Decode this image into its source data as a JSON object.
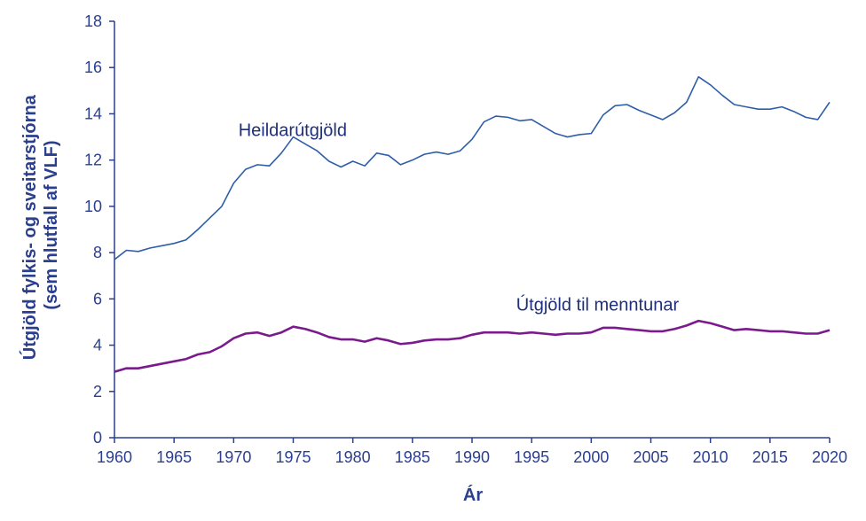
{
  "chart_data": {
    "type": "line",
    "title": "",
    "xlabel": "Ár",
    "ylabel_line1": "Útgjöld fylkis- og sveitarstjórna",
    "ylabel_line2": "(sem hlutfall af VLF)",
    "xlim": [
      1960,
      2020
    ],
    "ylim": [
      0,
      18
    ],
    "x_ticks": [
      1960,
      1965,
      1970,
      1975,
      1980,
      1985,
      1990,
      1995,
      2000,
      2005,
      2010,
      2015,
      2020
    ],
    "y_ticks": [
      0,
      2,
      4,
      6,
      8,
      10,
      12,
      14,
      16,
      18
    ],
    "grid": false,
    "legend": "none (series labelled directly on chart)",
    "colors": {
      "axis": "#2b3f8f",
      "heildar": "#2e5ea8",
      "menntun": "#7a1a8c"
    },
    "x": [
      1960,
      1961,
      1962,
      1963,
      1964,
      1965,
      1966,
      1967,
      1968,
      1969,
      1970,
      1971,
      1972,
      1973,
      1974,
      1975,
      1976,
      1977,
      1978,
      1979,
      1980,
      1981,
      1982,
      1983,
      1984,
      1985,
      1986,
      1987,
      1988,
      1989,
      1990,
      1991,
      1992,
      1993,
      1994,
      1995,
      1996,
      1997,
      1998,
      1999,
      2000,
      2001,
      2002,
      2003,
      2004,
      2005,
      2006,
      2007,
      2008,
      2009,
      2010,
      2011,
      2012,
      2013,
      2014,
      2015,
      2016,
      2017,
      2018,
      2019,
      2020
    ],
    "series": [
      {
        "name": "Heildarútgjöld",
        "values": [
          7.7,
          8.1,
          8.05,
          8.2,
          8.3,
          8.4,
          8.55,
          9.0,
          9.5,
          10.0,
          11.0,
          11.6,
          11.8,
          11.75,
          12.3,
          13.0,
          12.7,
          12.4,
          11.95,
          11.7,
          11.95,
          11.75,
          12.3,
          12.2,
          11.8,
          12.0,
          12.25,
          12.35,
          12.25,
          12.4,
          12.9,
          13.65,
          13.9,
          13.85,
          13.7,
          13.75,
          13.45,
          13.15,
          13.0,
          13.1,
          13.15,
          13.95,
          14.35,
          14.4,
          14.15,
          13.95,
          13.75,
          14.05,
          14.5,
          15.6,
          15.25,
          14.8,
          14.4,
          14.3,
          14.2,
          14.2,
          14.3,
          14.1,
          13.85,
          13.75,
          14.5
        ],
        "label_year": 1970.4,
        "label_value": 13.05
      },
      {
        "name": "Útgjöld til menntunar",
        "values": [
          2.85,
          3.0,
          3.0,
          3.1,
          3.2,
          3.3,
          3.4,
          3.6,
          3.7,
          3.95,
          4.3,
          4.5,
          4.55,
          4.4,
          4.55,
          4.8,
          4.7,
          4.55,
          4.35,
          4.25,
          4.25,
          4.15,
          4.3,
          4.2,
          4.05,
          4.1,
          4.2,
          4.25,
          4.25,
          4.3,
          4.45,
          4.55,
          4.55,
          4.55,
          4.5,
          4.55,
          4.5,
          4.45,
          4.5,
          4.5,
          4.55,
          4.75,
          4.75,
          4.7,
          4.65,
          4.6,
          4.6,
          4.7,
          4.85,
          5.05,
          4.95,
          4.8,
          4.65,
          4.7,
          4.65,
          4.6,
          4.6,
          4.55,
          4.5,
          4.5,
          4.65
        ],
        "label_year": 1993.7,
        "label_value": 5.5
      }
    ]
  }
}
